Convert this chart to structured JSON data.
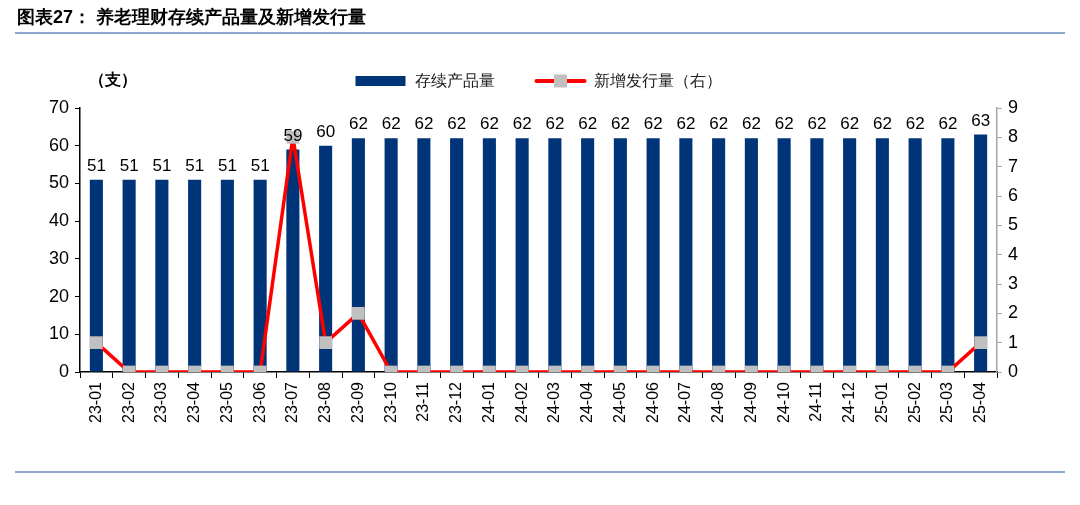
{
  "chart_data": {
    "type": "bar",
    "title": "图表27： 养老理财存续产品量及新增发行量",
    "ylabel": "（支）",
    "categories": [
      "23-01",
      "23-02",
      "23-03",
      "23-04",
      "23-05",
      "23-06",
      "23-07",
      "23-08",
      "23-09",
      "23-10",
      "23-11",
      "23-12",
      "24-01",
      "24-02",
      "24-03",
      "24-04",
      "24-05",
      "24-06",
      "24-07",
      "24-08",
      "24-09",
      "24-10",
      "24-11",
      "24-12",
      "25-01",
      "25-02",
      "25-03",
      "25-04"
    ],
    "series": [
      {
        "name": "存续产品量",
        "color": "#003478",
        "values": [
          51,
          51,
          51,
          51,
          51,
          51,
          59,
          60,
          62,
          62,
          62,
          62,
          62,
          62,
          62,
          62,
          62,
          62,
          62,
          62,
          62,
          62,
          62,
          62,
          62,
          62,
          62,
          63
        ],
        "value_labels": [
          "51",
          "51",
          "51",
          "51",
          "51",
          "51",
          "59",
          "60",
          "62",
          "62",
          "62",
          "62",
          "62",
          "62",
          "62",
          "62",
          "62",
          "62",
          "62",
          "62",
          "62",
          "62",
          "62",
          "62",
          "62",
          "62",
          "62",
          "63"
        ]
      },
      {
        "name": "新增发行量（右）",
        "type": "line",
        "axis": "y2",
        "color": "#ff0000",
        "colors": [
          "#c0c0c0",
          "#c0c0c0",
          "#c0c0c0",
          "#c0c0c0",
          "#c0c0c0",
          "#c0c0c0",
          "#c0c0c0",
          "#c0c0c0",
          "#c0c0c0",
          "#c0c0c0",
          "#c0c0c0",
          "#c0c0c0",
          "#c0c0c0",
          "#c0c0c0",
          "#c0c0c0",
          "#c0c0c0",
          "#c0c0c0",
          "#c0c0c0",
          "#c0c0c0",
          "#c0c0c0",
          "#c0c0c0",
          "#c0c0c0",
          "#c0c0c0",
          "#c0c0c0",
          "#c0c0c0",
          "#c0c0c0",
          "#c0c0c0",
          "#c0c0c0"
        ],
        "values": [
          1,
          0,
          0,
          0,
          0,
          0,
          8,
          1,
          2,
          0,
          0,
          0,
          0,
          0,
          0,
          0,
          0,
          0,
          0,
          0,
          0,
          0,
          0,
          0,
          0,
          0,
          0,
          1
        ]
      }
    ],
    "ylim": [
      0,
      70
    ],
    "yticks": [
      0,
      10,
      20,
      30,
      40,
      50,
      60,
      70
    ],
    "y2lim": [
      0,
      9
    ],
    "y2ticks": [
      0,
      1,
      2,
      3,
      4,
      5,
      6,
      7,
      8,
      9
    ],
    "legend": "top",
    "marker": "square"
  }
}
